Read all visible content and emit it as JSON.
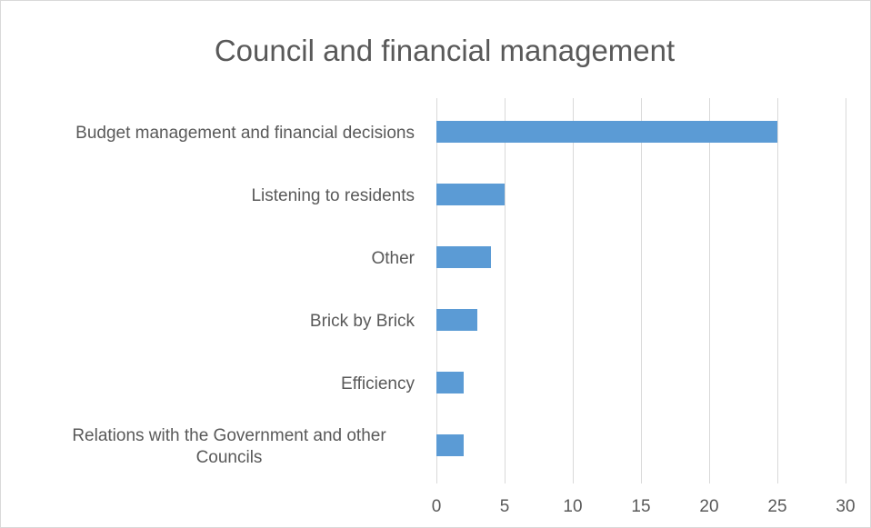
{
  "chart_data": {
    "type": "bar",
    "orientation": "horizontal",
    "title": "Council and financial management",
    "categories": [
      "Budget management and financial decisions",
      "Listening to residents",
      "Other",
      "Brick by Brick",
      "Efficiency",
      "Relations with the Government and other Councils"
    ],
    "category_lines": [
      [
        "Budget management and financial decisions"
      ],
      [
        "Listening to residents"
      ],
      [
        "Other"
      ],
      [
        "Brick by Brick"
      ],
      [
        "Efficiency"
      ],
      [
        "Relations with the Government and other",
        "Councils"
      ]
    ],
    "values": [
      25,
      5,
      4,
      3,
      2,
      2
    ],
    "xlim": [
      0,
      30
    ],
    "xticks": [
      0,
      5,
      10,
      15,
      20,
      25,
      30
    ],
    "xlabel": "",
    "ylabel": "",
    "grid": true,
    "legend": "none",
    "bar_color": "#5b9bd5",
    "grid_color": "#d9d9d9",
    "text_color": "#595959"
  }
}
